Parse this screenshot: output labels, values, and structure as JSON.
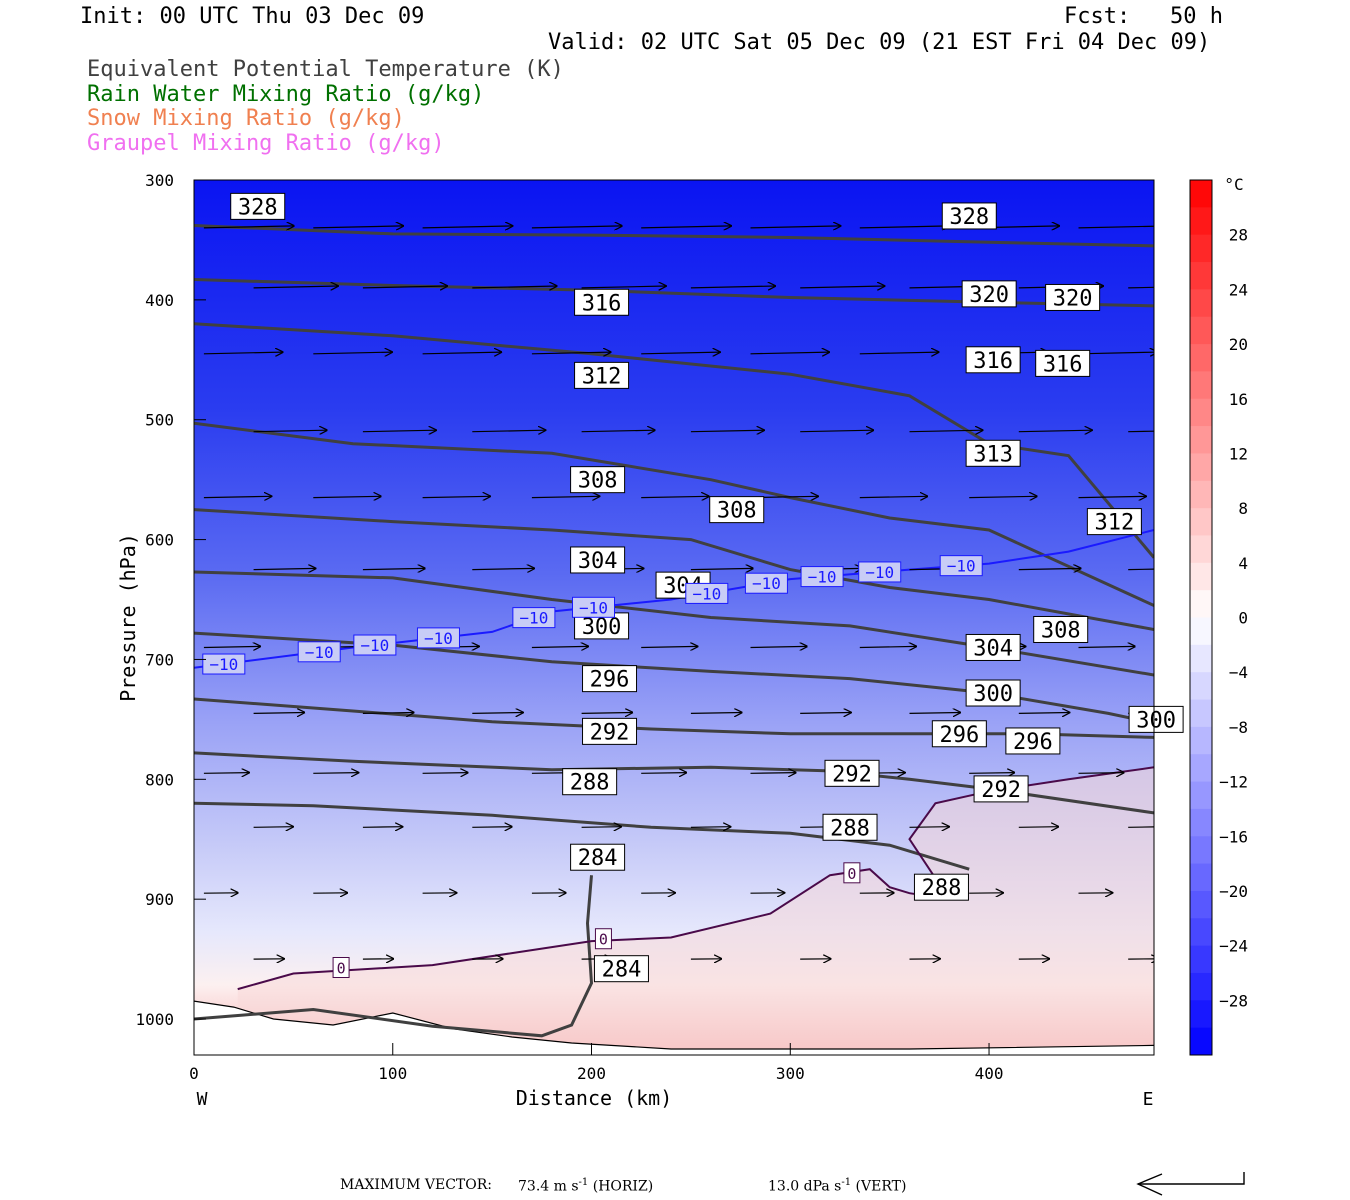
{
  "header": {
    "init": "Init: 00 UTC Thu 03 Dec 09",
    "fcst": "Fcst:   50 h",
    "valid": "Valid: 02 UTC Sat 05 Dec 09 (21 EST Fri 04 Dec 09)"
  },
  "legend": [
    {
      "label": "Equivalent Potential Temperature (K)",
      "color": "#404040"
    },
    {
      "label": "Rain Water Mixing Ratio (g/kg)",
      "color": "#007000"
    },
    {
      "label": "Snow Mixing Ratio (g/kg)",
      "color": "#f08050"
    },
    {
      "label": "Graupel Mixing Ratio (g/kg)",
      "color": "#f070f0"
    }
  ],
  "footer": {
    "max_vector_label": "MAXIMUM VECTOR:",
    "horiz_value": "73.4 m s",
    "horiz_suffix": " (HORIZ)",
    "vert_value": "13.0 dPa s",
    "vert_suffix": " (VERT)",
    "exponent": "-1"
  },
  "chart_data": {
    "type": "cross-section",
    "xlabel": "Distance (km)",
    "ylabel": "Pressure (hPa)",
    "xlim": [
      0,
      483
    ],
    "ylim": [
      1030,
      300
    ],
    "x_ticks": [
      0,
      100,
      200,
      300,
      400
    ],
    "y_ticks": [
      300,
      400,
      500,
      600,
      700,
      800,
      900,
      1000
    ],
    "x_end_labels": {
      "left": "W",
      "right": "E"
    },
    "colorbar": {
      "unit": "°C",
      "tick_labels": [
        "28",
        "24",
        "20",
        "16",
        "12",
        "8",
        "4",
        "0",
        "−4",
        "−8",
        "−12",
        "−16",
        "−20",
        "−24",
        "−28"
      ],
      "tick_values": [
        28,
        24,
        20,
        16,
        12,
        8,
        4,
        0,
        -4,
        -8,
        -12,
        -16,
        -20,
        -24,
        -28
      ],
      "range": [
        -32,
        32
      ],
      "cold_color": "#0000ff",
      "warm_color": "#ff0000"
    },
    "theta_e_contours": [
      {
        "value": 284,
        "points": [
          [
            0,
            1000
          ],
          [
            60,
            992
          ],
          [
            120,
            1006
          ],
          [
            175,
            1014
          ],
          [
            190,
            1005
          ],
          [
            200,
            970
          ],
          [
            198,
            920
          ],
          [
            200,
            880
          ]
        ]
      },
      {
        "value": 288,
        "points": [
          [
            0,
            820
          ],
          [
            60,
            822
          ],
          [
            150,
            830
          ],
          [
            230,
            840
          ],
          [
            300,
            845
          ],
          [
            350,
            855
          ],
          [
            390,
            875
          ]
        ]
      },
      {
        "value": 292,
        "points": [
          [
            0,
            778
          ],
          [
            80,
            785
          ],
          [
            180,
            792
          ],
          [
            260,
            790
          ],
          [
            320,
            793
          ],
          [
            360,
            800
          ],
          [
            400,
            808
          ],
          [
            483,
            828
          ]
        ]
      },
      {
        "value": 296,
        "points": [
          [
            0,
            733
          ],
          [
            80,
            743
          ],
          [
            150,
            752
          ],
          [
            230,
            758
          ],
          [
            300,
            762
          ],
          [
            360,
            762
          ],
          [
            420,
            762
          ],
          [
            483,
            765
          ]
        ]
      },
      {
        "value": 300,
        "points": [
          [
            0,
            678
          ],
          [
            100,
            688
          ],
          [
            180,
            702
          ],
          [
            260,
            710
          ],
          [
            330,
            716
          ],
          [
            400,
            728
          ],
          [
            460,
            745
          ],
          [
            483,
            753
          ]
        ]
      },
      {
        "value": 304,
        "points": [
          [
            0,
            627
          ],
          [
            100,
            632
          ],
          [
            180,
            650
          ],
          [
            260,
            665
          ],
          [
            330,
            672
          ],
          [
            400,
            690
          ],
          [
            483,
            713
          ]
        ]
      },
      {
        "value": 308,
        "points": [
          [
            0,
            575
          ],
          [
            100,
            585
          ],
          [
            180,
            592
          ],
          [
            250,
            600
          ],
          [
            300,
            625
          ],
          [
            350,
            640
          ],
          [
            400,
            650
          ],
          [
            483,
            675
          ]
        ]
      },
      {
        "value": 312,
        "points": [
          [
            0,
            503
          ],
          [
            80,
            520
          ],
          [
            180,
            528
          ],
          [
            260,
            550
          ],
          [
            300,
            565
          ],
          [
            350,
            582
          ],
          [
            400,
            592
          ],
          [
            483,
            655
          ]
        ]
      },
      {
        "value": 316,
        "points": [
          [
            0,
            420
          ],
          [
            100,
            430
          ],
          [
            200,
            445
          ],
          [
            300,
            462
          ],
          [
            360,
            480
          ],
          [
            400,
            520
          ],
          [
            440,
            530
          ],
          [
            483,
            615
          ]
        ]
      },
      {
        "value": 320,
        "points": [
          [
            0,
            383
          ],
          [
            100,
            388
          ],
          [
            200,
            392
          ],
          [
            300,
            398
          ],
          [
            400,
            402
          ],
          [
            483,
            405
          ]
        ]
      },
      {
        "value": 328,
        "points": [
          [
            0,
            338
          ],
          [
            100,
            345
          ],
          [
            200,
            346
          ],
          [
            300,
            348
          ],
          [
            400,
            352
          ],
          [
            483,
            355
          ]
        ]
      }
    ],
    "theta_e_labels": [
      {
        "text": "328",
        "x": 22,
        "p": 322
      },
      {
        "text": "328",
        "x": 380,
        "p": 330
      },
      {
        "text": "316",
        "x": 195,
        "p": 402
      },
      {
        "text": "320",
        "x": 390,
        "p": 395
      },
      {
        "text": "320",
        "x": 432,
        "p": 398
      },
      {
        "text": "312",
        "x": 195,
        "p": 463
      },
      {
        "text": "316",
        "x": 392,
        "p": 450
      },
      {
        "text": "316",
        "x": 427,
        "p": 453
      },
      {
        "text": "308",
        "x": 193,
        "p": 550
      },
      {
        "text": "308",
        "x": 263,
        "p": 575
      },
      {
        "text": "313",
        "x": 392,
        "p": 528
      },
      {
        "text": "312",
        "x": 453,
        "p": 585
      },
      {
        "text": "304",
        "x": 193,
        "p": 617
      },
      {
        "text": "304",
        "x": 236,
        "p": 638
      },
      {
        "text": "300",
        "x": 195,
        "p": 672
      },
      {
        "text": "308",
        "x": 426,
        "p": 675
      },
      {
        "text": "296",
        "x": 199,
        "p": 716
      },
      {
        "text": "304",
        "x": 392,
        "p": 690
      },
      {
        "text": "300",
        "x": 392,
        "p": 728
      },
      {
        "text": "292",
        "x": 199,
        "p": 760
      },
      {
        "text": "296",
        "x": 375,
        "p": 762
      },
      {
        "text": "296",
        "x": 412,
        "p": 768
      },
      {
        "text": "300",
        "x": 474,
        "p": 750
      },
      {
        "text": "288",
        "x": 189,
        "p": 802
      },
      {
        "text": "292",
        "x": 321,
        "p": 795
      },
      {
        "text": "292",
        "x": 396,
        "p": 808
      },
      {
        "text": "288",
        "x": 320,
        "p": 840
      },
      {
        "text": "284",
        "x": 193,
        "p": 865
      },
      {
        "text": "288",
        "x": 366,
        "p": 890
      },
      {
        "text": "284",
        "x": 205,
        "p": 958
      }
    ],
    "isotherm_minus10": {
      "label": "−10",
      "points": [
        [
          0,
          707
        ],
        [
          80,
          690
        ],
        [
          150,
          677
        ],
        [
          180,
          660
        ],
        [
          240,
          650
        ],
        [
          300,
          633
        ],
        [
          360,
          625
        ],
        [
          400,
          620
        ],
        [
          440,
          610
        ],
        [
          483,
          592
        ]
      ],
      "label_x": [
        15,
        63,
        91,
        123,
        171,
        201,
        258,
        288,
        316,
        345,
        386
      ]
    },
    "freezing_line": {
      "label": "0",
      "points": [
        [
          22,
          975
        ],
        [
          50,
          962
        ],
        [
          120,
          955
        ],
        [
          160,
          945
        ],
        [
          200,
          935
        ],
        [
          240,
          932
        ],
        [
          290,
          912
        ],
        [
          320,
          880
        ],
        [
          340,
          875
        ],
        [
          350,
          890
        ],
        [
          360,
          895
        ],
        [
          380,
          900
        ],
        [
          360,
          850
        ],
        [
          373,
          820
        ],
        [
          400,
          810
        ],
        [
          440,
          800
        ],
        [
          483,
          790
        ]
      ],
      "label_positions": [
        [
          74,
          957
        ],
        [
          206,
          933
        ],
        [
          331,
          878
        ]
      ]
    },
    "wind_vectors": [
      [
        0.33,
        0.03,
        0.11,
        0.0
      ],
      [
        0.55,
        0.04,
        0.1,
        0.0
      ],
      [
        0.82,
        0.06,
        0.11,
        0.0
      ],
      [
        0.1,
        0.12,
        0.09,
        0.0
      ],
      [
        0.28,
        0.13,
        0.1,
        0.0
      ],
      [
        0.58,
        0.14,
        0.08,
        0.0
      ],
      [
        0.8,
        0.14,
        0.09,
        0.0
      ],
      [
        0.1,
        0.2,
        0.08,
        0.0
      ],
      [
        0.33,
        0.21,
        0.07,
        0.0
      ],
      [
        0.6,
        0.22,
        0.08,
        0.0
      ],
      [
        0.8,
        0.22,
        0.07,
        0.0
      ]
    ],
    "max_vector_horiz_ms": 73.4,
    "max_vector_vert_dPas": 13.0
  }
}
